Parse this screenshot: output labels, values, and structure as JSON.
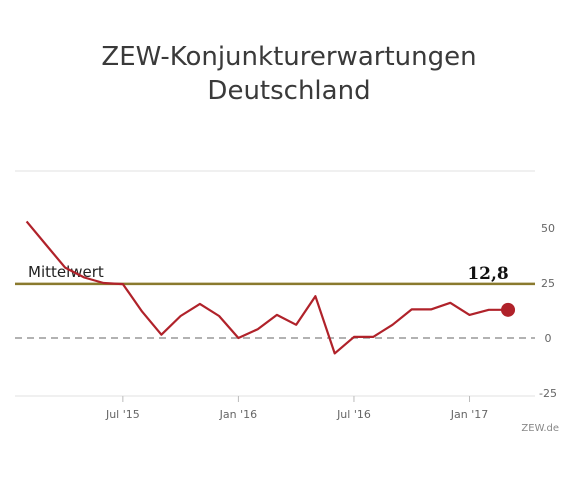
{
  "chart_data": {
    "type": "line",
    "title_line1": "ZEW-Konjunkturerwartungen",
    "title_line2": "Deutschland",
    "xlabel": "",
    "ylabel": "",
    "ylim": [
      -25,
      55
    ],
    "y_ticks": [
      50,
      25,
      0,
      -25
    ],
    "x_ticks": [
      "Jul '15",
      "Jan '16",
      "Jul '16",
      "Jan '17"
    ],
    "x_tick_index": [
      5,
      11,
      17,
      23
    ],
    "x_index_range": [
      -0.6,
      26.4
    ],
    "x": [
      "Feb '15",
      "Mar '15",
      "Apr '15",
      "May '15",
      "Jun '15",
      "Jul '15",
      "Aug '15",
      "Sep '15",
      "Oct '15",
      "Nov '15",
      "Dec '15",
      "Jan '16",
      "Feb '16",
      "Mar '16",
      "Apr '16",
      "May '16",
      "Jun '16",
      "Jul '16",
      "Aug '16",
      "Sep '16",
      "Oct '16",
      "Nov '16",
      "Dec '16",
      "Jan '17",
      "Feb '17",
      "Mar '17"
    ],
    "series": [
      {
        "values": [
          53,
          42.5,
          32,
          27.5,
          25,
          24.5,
          12,
          1.5,
          10,
          15.5,
          10,
          0,
          4,
          10.5,
          6,
          19,
          -7,
          0.5,
          0.5,
          6,
          13,
          13,
          16,
          10.5,
          12.8,
          12.8
        ]
      }
    ],
    "reference_lines": [
      {
        "label": "Mittelwert",
        "value": 24.6,
        "color": "#8a7a2e"
      },
      {
        "label": "",
        "value": 0,
        "color": "#999999",
        "style": "dashed"
      }
    ],
    "last_value_label": "12,8",
    "line_color": "#b0222a",
    "source": "ZEW.de",
    "grid": false
  }
}
